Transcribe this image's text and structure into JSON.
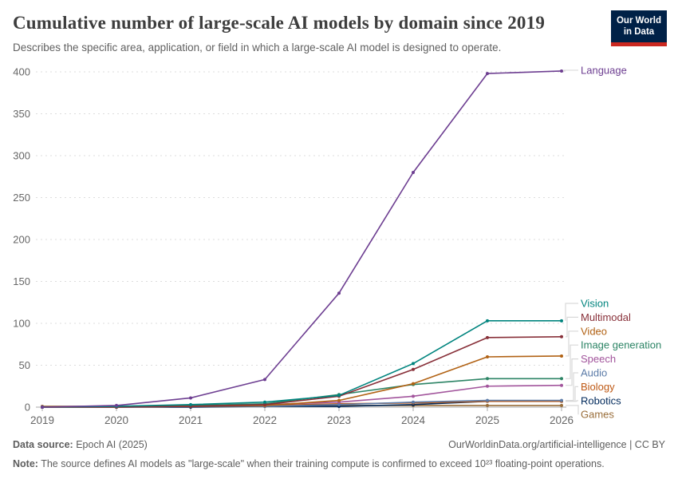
{
  "header": {
    "title": "Cumulative number of large-scale AI models by domain since 2019",
    "subtitle": "Describes the specific area, application, or field in which a large-scale AI model is designed to operate.",
    "logo_line1": "Our World",
    "logo_line2": "in Data"
  },
  "chart_data": {
    "type": "line",
    "title": "Cumulative number of large-scale AI models by domain since 2019",
    "x": [
      2019,
      2020,
      2021,
      2022,
      2023,
      2024,
      2025,
      2026
    ],
    "xtick_labels": [
      "2019",
      "2020",
      "2021",
      "2022",
      "2023",
      "2024",
      "2025",
      "2026"
    ],
    "ylim": [
      0,
      400
    ],
    "yticks": [
      0,
      50,
      100,
      150,
      200,
      250,
      300,
      350,
      400
    ],
    "grid": "horizontal-dashed",
    "legend_position": "right-edge-labels",
    "series": [
      {
        "name": "Language",
        "color": "#6D3E91",
        "values": [
          0,
          2,
          11,
          33,
          136,
          280,
          398,
          401
        ]
      },
      {
        "name": "Vision",
        "color": "#00847E",
        "values": [
          0,
          1,
          3,
          6,
          14,
          52,
          103,
          103
        ]
      },
      {
        "name": "Multimodal",
        "color": "#883039",
        "values": [
          0,
          0,
          1,
          3,
          13,
          45,
          83,
          84
        ]
      },
      {
        "name": "Video",
        "color": "#B16214",
        "values": [
          0,
          0,
          1,
          2,
          8,
          28,
          60,
          61
        ]
      },
      {
        "name": "Image generation",
        "color": "#2C8465",
        "values": [
          0,
          1,
          2,
          4,
          15,
          27,
          34,
          34
        ]
      },
      {
        "name": "Speech",
        "color": "#A2559C",
        "values": [
          0,
          1,
          2,
          3,
          6,
          13,
          25,
          26
        ]
      },
      {
        "name": "Audio",
        "color": "#5B7BA8",
        "values": [
          0,
          0,
          1,
          1,
          3,
          6,
          8,
          8
        ]
      },
      {
        "name": "Biology",
        "color": "#BE5915",
        "values": [
          0,
          1,
          1,
          2,
          4,
          5,
          7,
          7
        ]
      },
      {
        "name": "Robotics",
        "color": "#00295B",
        "values": [
          0,
          0,
          0,
          1,
          1,
          3,
          7,
          7
        ]
      },
      {
        "name": "Games",
        "color": "#996D39",
        "values": [
          1,
          1,
          1,
          2,
          2,
          2,
          2,
          2
        ]
      }
    ]
  },
  "footer": {
    "source_label": "Data source:",
    "source_text": " Epoch AI (2025)",
    "link_text": "OurWorldinData.org/artificial-intelligence | CC BY",
    "note_label": "Note:",
    "note_text": " The source defines AI models as \"large-scale\" when their training compute is confirmed to exceed 10²³ floating-point operations."
  }
}
